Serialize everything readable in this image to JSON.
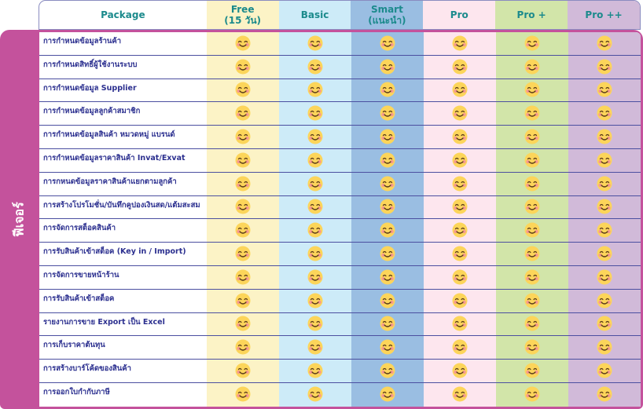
{
  "header": {
    "package_label": "Package",
    "plans": [
      {
        "name": "Free",
        "sub": "(15 วัน)",
        "color": "#fcf3c6"
      },
      {
        "name": "Basic",
        "sub": "",
        "color": "#cdebf8"
      },
      {
        "name": "Smart",
        "sub": "(แนะนำ)",
        "color": "#9abee2"
      },
      {
        "name": "Pro",
        "sub": "",
        "color": "#fde6ee"
      },
      {
        "name": "Pro +",
        "sub": "",
        "color": "#d2e5a9"
      },
      {
        "name": "Pro ++",
        "sub": "",
        "color": "#d1bad9"
      }
    ]
  },
  "sidebar": {
    "label": "ฟีเจอร์",
    "color": "#c4529c"
  },
  "check_icon": "smiling-face-emoji",
  "features": [
    "การกำหนดข้อมูลร้านค้า",
    "การกำหนดสิทธิ์ผู้ใช้งานระบบ",
    "การกำหนดข้อมูล Supplier",
    "การกำหนดข้อมูลลูกค้าสมาชิก",
    "การกำหนดข้อมูลสินค้า หมวดหมู่ แบรนด์",
    "การกำหนดข้อมูลราคาสินค้า Invat/Exvat",
    "การกหนดข้อมูลราคาสินค้าแยกตามลูกค้า",
    "การสร้างโปรโมชั่น/บันทึกคูปองเงินสด/แต้มสะสม",
    "การจัดการสต็อคสินค้า",
    "การรับสินค้าเข้าสต็อค (Key in / Import)",
    "การจัดการขายหน้าร้าน",
    "การรับสินค้าเข้าสต็อค",
    "รายงานการขาย Export เป็น Excel",
    "การเก็บราคาต้นทุน",
    "การสร้างบาร์โค้ดของสินค้า",
    "การออกใบกำกับภาษี"
  ]
}
